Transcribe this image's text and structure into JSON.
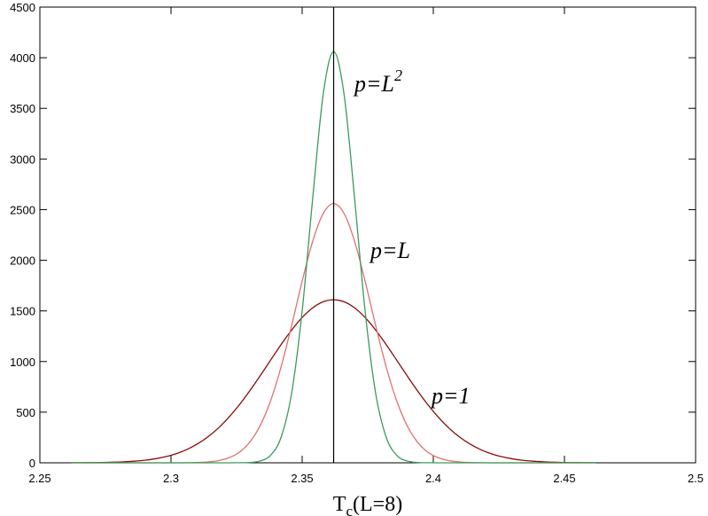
{
  "chart_data": {
    "type": "line",
    "xlabel": {
      "main": "T",
      "sub": "c",
      "tail": "(L=8)"
    },
    "x": [
      2.262,
      2.266,
      2.27,
      2.274,
      2.278,
      2.282,
      2.286,
      2.29,
      2.294,
      2.298,
      2.302,
      2.306,
      2.31,
      2.314,
      2.318,
      2.322,
      2.326,
      2.33,
      2.334,
      2.338,
      2.342,
      2.346,
      2.35,
      2.354,
      2.358,
      2.362,
      2.366,
      2.37,
      2.374,
      2.378,
      2.382,
      2.386,
      2.39,
      2.394,
      2.398,
      2.402,
      2.406,
      2.41,
      2.414,
      2.418,
      2.422,
      2.426,
      2.43,
      2.434,
      2.438,
      2.442,
      2.446,
      2.45,
      2.454,
      2.458,
      2.462
    ],
    "series": [
      {
        "label": "p=1",
        "color": "#8b0a0a",
        "values": [
          1,
          1,
          2,
          3,
          6,
          10,
          16,
          25,
          40,
          61,
          90,
          131,
          185,
          255,
          342,
          448,
          571,
          710,
          860,
          1015,
          1169,
          1311,
          1435,
          1530,
          1590,
          1610,
          1590,
          1530,
          1435,
          1311,
          1169,
          1015,
          860,
          710,
          571,
          448,
          342,
          255,
          185,
          131,
          90,
          61,
          40,
          25,
          16,
          10,
          6,
          3,
          2,
          1,
          1
        ]
      },
      {
        "label": "p=L",
        "color": "#e07070",
        "values": [
          0,
          0,
          0,
          0,
          0,
          0,
          0,
          0,
          0,
          0,
          0,
          1,
          3,
          9,
          21,
          49,
          103,
          203,
          368,
          615,
          951,
          1358,
          1793,
          2186,
          2461,
          2560,
          2461,
          2186,
          1793,
          1358,
          951,
          615,
          368,
          203,
          103,
          49,
          21,
          9,
          3,
          1,
          0,
          0,
          0,
          0,
          0,
          0,
          0,
          0,
          0,
          0,
          0
        ]
      },
      {
        "label": "p=L",
        "label_sup": "2",
        "color": "#3a9a5e",
        "values": [
          0,
          0,
          0,
          0,
          0,
          0,
          0,
          0,
          0,
          0,
          0,
          0,
          0,
          0,
          0,
          0,
          1,
          3,
          18,
          75,
          255,
          690,
          1499,
          2607,
          3634,
          4060,
          3634,
          2607,
          1499,
          690,
          255,
          75,
          18,
          3,
          1,
          0,
          0,
          0,
          0,
          0,
          0,
          0,
          0,
          0,
          0,
          0,
          0,
          0,
          0,
          0,
          0
        ]
      }
    ],
    "vline": 2.362,
    "xlim": [
      2.25,
      2.5
    ],
    "xticks": [
      2.25,
      2.3,
      2.35,
      2.4,
      2.45,
      2.5
    ],
    "ylim": [
      0,
      4500
    ],
    "yticks": [
      0,
      500,
      1000,
      1500,
      2000,
      2500,
      3000,
      3500,
      4000,
      4500
    ]
  }
}
